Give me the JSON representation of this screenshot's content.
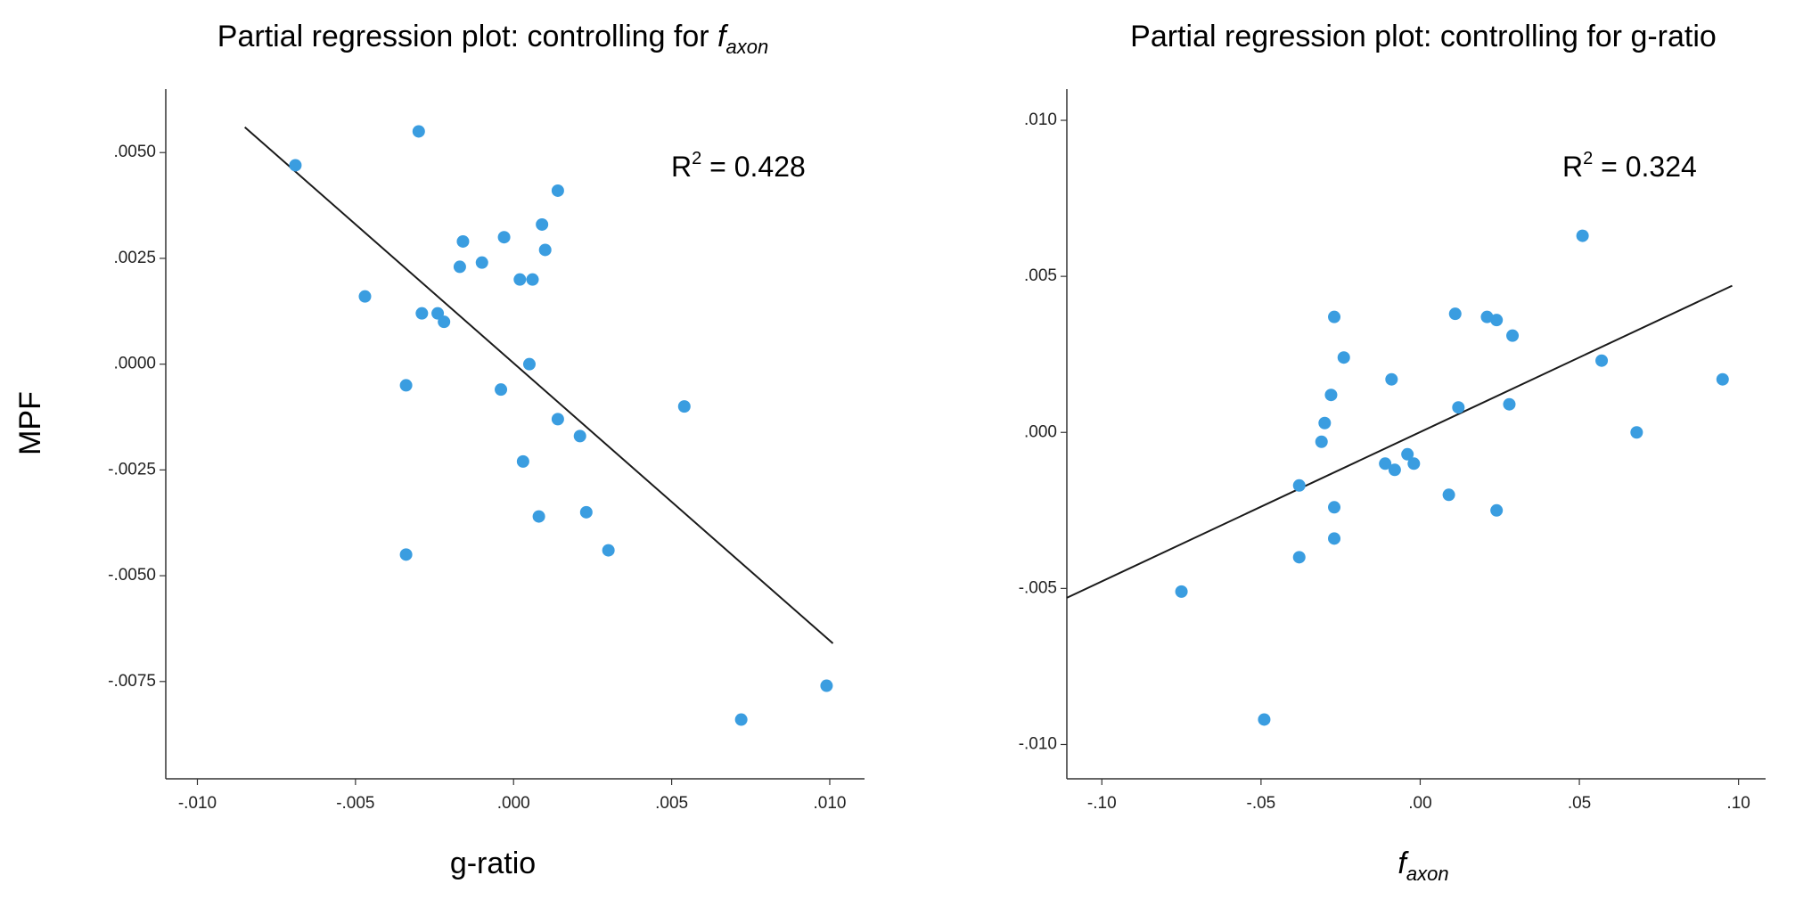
{
  "figure": {
    "ylabel": "MPF"
  },
  "chart_data": [
    {
      "type": "scatter",
      "title": "Partial regression plot: controlling for ",
      "title_italic": "f",
      "title_sub": "axon",
      "xlabel": "g-ratio",
      "xlabel_italic": "",
      "xlabel_sub": "",
      "ylabel": "MPF",
      "xlim": [
        -0.011,
        0.0111
      ],
      "ylim": [
        -0.0098,
        0.0065
      ],
      "xticks": [
        -0.01,
        -0.005,
        0.0,
        0.005,
        0.01
      ],
      "xtick_labels": [
        "-.010",
        "-.005",
        ".000",
        ".005",
        ".010"
      ],
      "yticks": [
        0.005,
        0.0025,
        0.0,
        -0.0025,
        -0.005,
        -0.0075
      ],
      "ytick_labels": [
        ".0050",
        ".0025",
        ".0000",
        "-.0025",
        "-.0050",
        "-.0075"
      ],
      "r2_prefix": "R",
      "r2_sup": "2",
      "r2_value": " = 0.428",
      "fit": {
        "x": [
          -0.0085,
          0.0101
        ],
        "y": [
          0.0056,
          -0.0066
        ]
      },
      "points": [
        {
          "x": -0.0069,
          "y": 0.0047
        },
        {
          "x": -0.003,
          "y": 0.0055
        },
        {
          "x": -0.0047,
          "y": 0.0016
        },
        {
          "x": -0.0029,
          "y": 0.0012
        },
        {
          "x": -0.0024,
          "y": 0.0012
        },
        {
          "x": -0.0022,
          "y": 0.001
        },
        {
          "x": -0.0016,
          "y": 0.0029
        },
        {
          "x": -0.0017,
          "y": 0.0023
        },
        {
          "x": -0.001,
          "y": 0.0024
        },
        {
          "x": -0.0003,
          "y": 0.003
        },
        {
          "x": 0.0002,
          "y": 0.002
        },
        {
          "x": 0.0006,
          "y": 0.002
        },
        {
          "x": 0.0009,
          "y": 0.0033
        },
        {
          "x": 0.001,
          "y": 0.0027
        },
        {
          "x": 0.0014,
          "y": 0.0041
        },
        {
          "x": 0.0005,
          "y": 0.0
        },
        {
          "x": -0.0034,
          "y": -0.0005
        },
        {
          "x": -0.0004,
          "y": -0.0006
        },
        {
          "x": 0.0014,
          "y": -0.0013
        },
        {
          "x": 0.0021,
          "y": -0.0017
        },
        {
          "x": 0.0003,
          "y": -0.0023
        },
        {
          "x": 0.0023,
          "y": -0.0035
        },
        {
          "x": 0.0008,
          "y": -0.0036
        },
        {
          "x": 0.003,
          "y": -0.0044
        },
        {
          "x": -0.0034,
          "y": -0.0045
        },
        {
          "x": 0.0054,
          "y": -0.001
        },
        {
          "x": 0.0072,
          "y": -0.0084
        },
        {
          "x": 0.0099,
          "y": -0.0076
        }
      ]
    },
    {
      "type": "scatter",
      "title": "Partial regression plot: controlling for g-ratio",
      "title_italic": "",
      "title_sub": "",
      "xlabel": "",
      "xlabel_italic": "f",
      "xlabel_sub": "axon",
      "ylabel": "MPF",
      "xlim": [
        -0.111,
        0.1085
      ],
      "ylim": [
        -0.0111,
        0.011
      ],
      "xticks": [
        -0.1,
        -0.05,
        0.0,
        0.05,
        0.1
      ],
      "xtick_labels": [
        "-.10",
        "-.05",
        ".00",
        ".05",
        ".10"
      ],
      "yticks": [
        0.01,
        0.005,
        0.0,
        -0.005,
        -0.01
      ],
      "ytick_labels": [
        ".010",
        ".005",
        ".000",
        "-.005",
        "-.010"
      ],
      "r2_prefix": "R",
      "r2_sup": "2",
      "r2_value": " = 0.324",
      "fit": {
        "x": [
          -0.111,
          0.098
        ],
        "y": [
          -0.0053,
          0.0047
        ]
      },
      "points": [
        {
          "x": -0.075,
          "y": -0.0051
        },
        {
          "x": -0.049,
          "y": -0.0092
        },
        {
          "x": -0.038,
          "y": -0.0017
        },
        {
          "x": -0.038,
          "y": -0.004
        },
        {
          "x": -0.031,
          "y": -0.0003
        },
        {
          "x": -0.03,
          "y": 0.0003
        },
        {
          "x": -0.028,
          "y": 0.0012
        },
        {
          "x": -0.027,
          "y": 0.0037
        },
        {
          "x": -0.027,
          "y": -0.0024
        },
        {
          "x": -0.027,
          "y": -0.0034
        },
        {
          "x": -0.024,
          "y": 0.0024
        },
        {
          "x": -0.011,
          "y": -0.001
        },
        {
          "x": -0.009,
          "y": 0.0017
        },
        {
          "x": -0.008,
          "y": -0.0012
        },
        {
          "x": -0.004,
          "y": -0.0007
        },
        {
          "x": -0.002,
          "y": -0.001
        },
        {
          "x": 0.009,
          "y": -0.002
        },
        {
          "x": 0.011,
          "y": 0.0038
        },
        {
          "x": 0.012,
          "y": 0.0008
        },
        {
          "x": 0.021,
          "y": 0.0037
        },
        {
          "x": 0.024,
          "y": 0.0036
        },
        {
          "x": 0.024,
          "y": -0.0025
        },
        {
          "x": 0.028,
          "y": 0.0009
        },
        {
          "x": 0.029,
          "y": 0.0031
        },
        {
          "x": 0.051,
          "y": 0.0063
        },
        {
          "x": 0.057,
          "y": 0.0023
        },
        {
          "x": 0.068,
          "y": 0.0
        },
        {
          "x": 0.095,
          "y": 0.0017
        }
      ]
    }
  ]
}
